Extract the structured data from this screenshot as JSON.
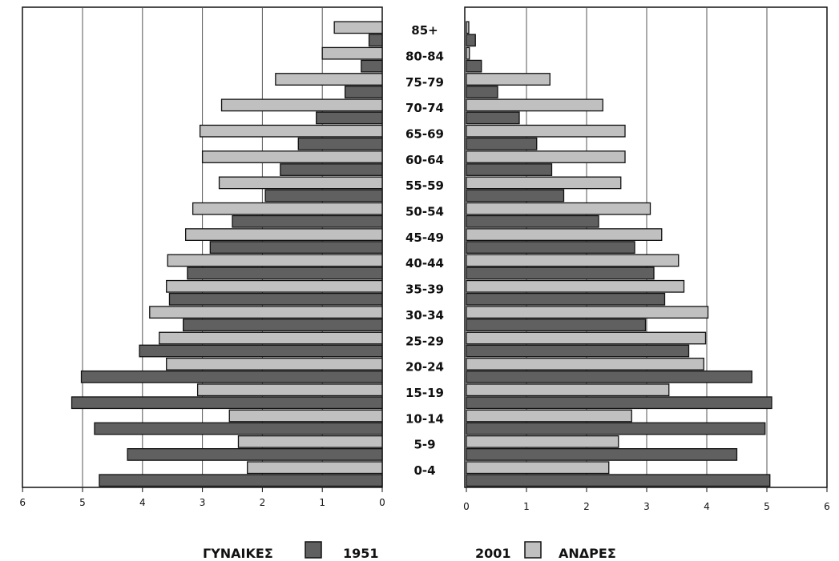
{
  "chart_data": {
    "type": "bar",
    "categories": [
      "0-4",
      "5-9",
      "10-14",
      "15-19",
      "20-24",
      "25-29",
      "30-34",
      "35-39",
      "40-44",
      "45-49",
      "50-54",
      "55-59",
      "60-64",
      "65-69",
      "70-74",
      "75-79",
      "80-84",
      "85+"
    ],
    "xlim": [
      0,
      6
    ],
    "ticks": [
      "0",
      "1",
      "2",
      "3",
      "4",
      "5",
      "6"
    ],
    "left_panel": {
      "label": "ΓΥΝΑΙΚΕΣ",
      "series": [
        {
          "name": "1951",
          "values": [
            4.72,
            4.25,
            4.8,
            5.18,
            5.02,
            4.05,
            3.32,
            3.55,
            3.25,
            2.87,
            2.5,
            1.95,
            1.7,
            1.4,
            1.1,
            0.62,
            0.35,
            0.22
          ]
        },
        {
          "name": "2001",
          "values": [
            2.25,
            2.4,
            2.55,
            3.08,
            3.6,
            3.72,
            3.88,
            3.6,
            3.58,
            3.28,
            3.16,
            2.72,
            3.0,
            3.04,
            2.68,
            1.78,
            1.0,
            0.8
          ]
        }
      ]
    },
    "right_panel": {
      "label": "ΑΝΔΡΕΣ",
      "series": [
        {
          "name": "1951",
          "values": [
            5.05,
            4.5,
            4.97,
            5.08,
            4.75,
            3.7,
            2.98,
            3.3,
            3.12,
            2.8,
            2.2,
            1.62,
            1.42,
            1.17,
            0.88,
            0.52,
            0.25,
            0.15
          ]
        },
        {
          "name": "2001",
          "values": [
            2.37,
            2.53,
            2.75,
            3.37,
            3.95,
            3.98,
            4.02,
            3.62,
            3.53,
            3.25,
            3.06,
            2.57,
            2.64,
            2.64,
            2.27,
            1.39,
            0.05,
            0.04
          ]
        }
      ]
    },
    "grid": true,
    "legend": {
      "position": "bottom",
      "women_label": "ΓΥΝΑΙΚΕΣ",
      "men_label": "ΑΝΔΡΕΣ",
      "year_1951": "1951",
      "year_2001": "2001"
    },
    "colors": {
      "y1951": "#606060",
      "y2001": "#c0c0c0",
      "border": "#111111",
      "grid": "#555555"
    }
  }
}
